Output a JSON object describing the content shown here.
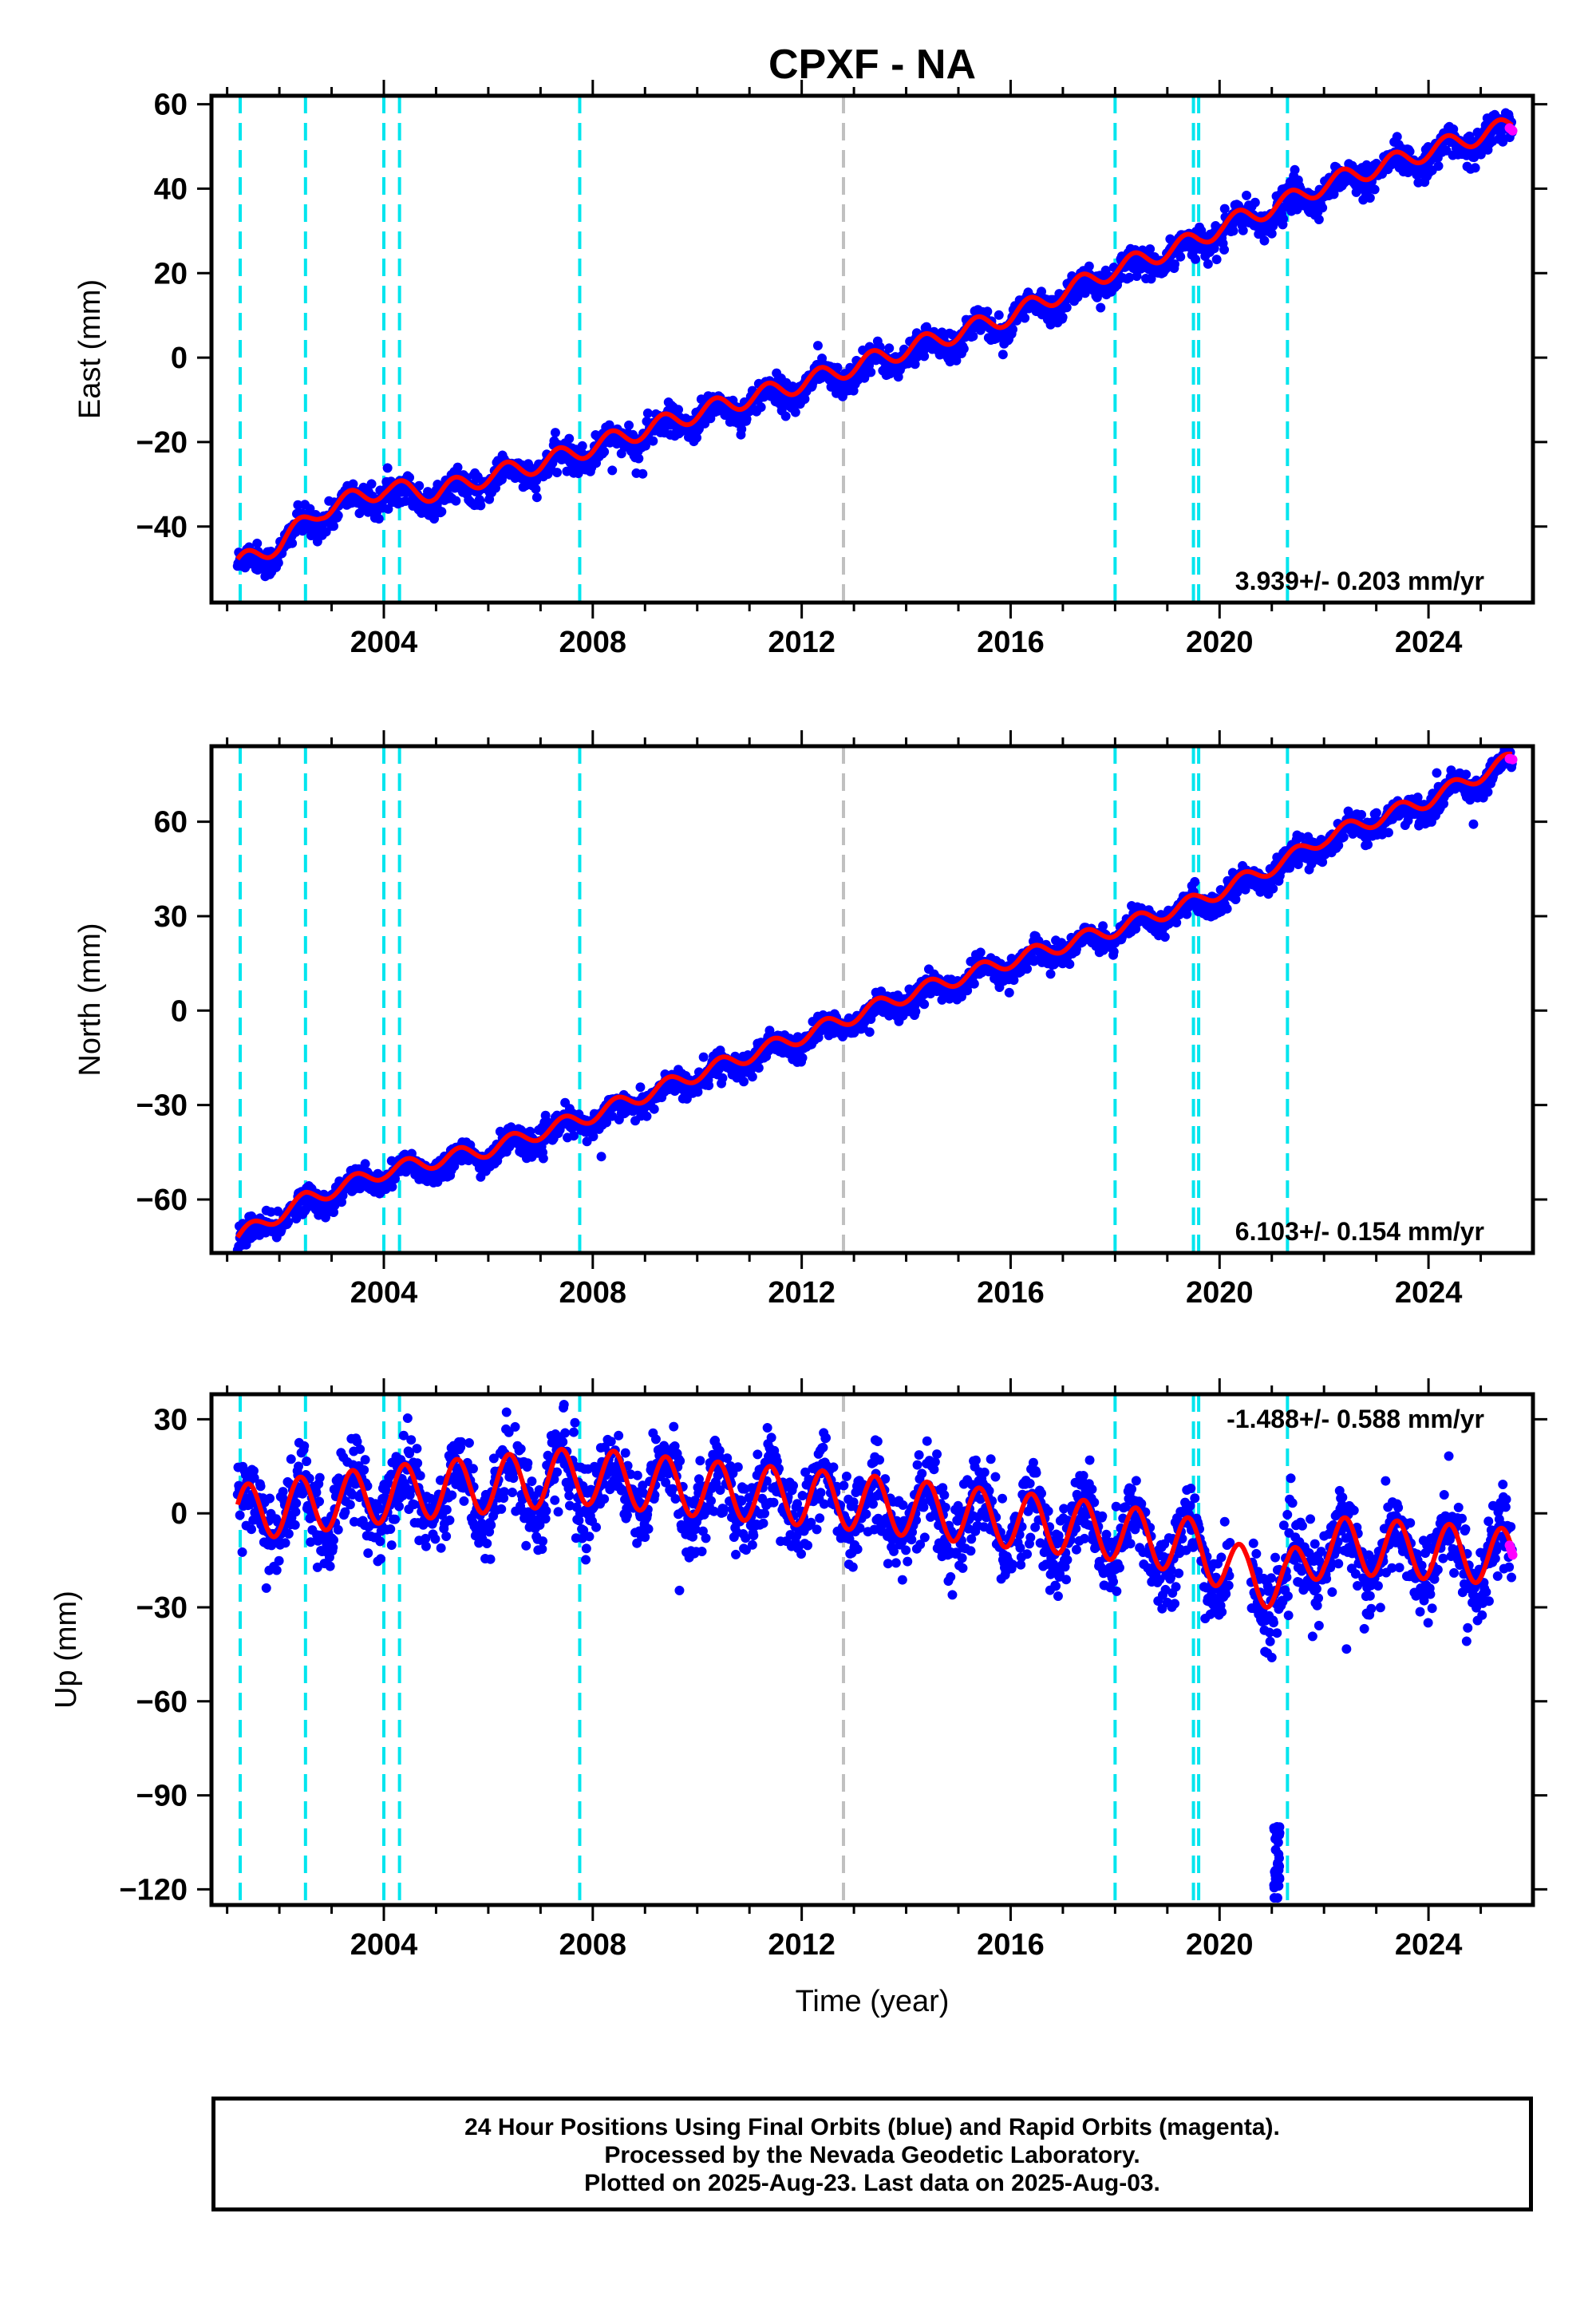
{
  "title": "CPXF - NA",
  "xlabel": "Time (year)",
  "caption": {
    "line1": "24 Hour Positions Using Final Orbits (blue) and Rapid Orbits (magenta).",
    "line2": "Processed by the Nevada Geodetic Laboratory.",
    "line3": "Plotted on 2025-Aug-23. Last data on 2025-Aug-03."
  },
  "colors": {
    "final_orbits": "#0000ff",
    "rapid_orbits": "#ff00ff",
    "model_fit": "#ff0000",
    "equipment_change": "#00e5ee",
    "other_event": "#c0c0c0"
  },
  "chart_data": [
    {
      "type": "scatter",
      "ylabel": "East (mm)",
      "xlim": [
        2000.7,
        2026.0
      ],
      "ylim": [
        -58,
        62
      ],
      "xticks": [
        "2004",
        "2008",
        "2012",
        "2016",
        "2020",
        "2024"
      ],
      "yticks": [
        "60",
        "40",
        "20",
        "0",
        "−20",
        "−40"
      ],
      "rate_label": "3.939+/- 0.203 mm/yr",
      "rate_position": "bottom-right",
      "grid": false,
      "model_fit_samples": {
        "x": [
          2001.2,
          2002.0,
          2002.8,
          2004.0,
          2005.0,
          2006.0,
          2007.0,
          2008.0,
          2010.0,
          2012.0,
          2014.0,
          2016.0,
          2018.0,
          2019.6,
          2020.0,
          2021.3,
          2022.0,
          2024.0,
          2025.6
        ],
        "y": [
          -49,
          -44,
          -36,
          -31,
          -32,
          -28,
          -25,
          -21,
          -13,
          -6,
          2,
          10,
          21,
          28,
          31,
          37,
          41,
          49,
          55
        ]
      },
      "series": [
        {
          "name": "Final Orbits",
          "color": "#0000ff"
        },
        {
          "name": "Rapid Orbits",
          "color": "#ff00ff"
        }
      ],
      "events_cyan": [
        2001.25,
        2002.5,
        2004.0,
        2004.3,
        2007.75,
        2018.0,
        2019.5,
        2019.6,
        2021.3
      ],
      "events_gray": [
        2012.8
      ]
    },
    {
      "type": "scatter",
      "ylabel": "North (mm)",
      "xlim": [
        2000.7,
        2026.0
      ],
      "ylim": [
        -77,
        84
      ],
      "xticks": [
        "2004",
        "2008",
        "2012",
        "2016",
        "2020",
        "2024"
      ],
      "yticks": [
        "60",
        "30",
        "0",
        "−30",
        "−60"
      ],
      "rate_label": "6.103+/- 0.154 mm/yr",
      "rate_position": "bottom-right",
      "grid": false,
      "model_fit_samples": {
        "x": [
          2001.2,
          2002.5,
          2004.0,
          2006.0,
          2008.0,
          2010.0,
          2012.0,
          2014.0,
          2016.0,
          2018.0,
          2019.6,
          2020.0,
          2021.3,
          2022.0,
          2024.0,
          2025.6
        ],
        "y": [
          -72,
          -60,
          -51,
          -44,
          -33,
          -20,
          -8,
          5,
          16,
          26,
          35,
          38,
          48,
          55,
          67,
          80
        ]
      },
      "series": [
        {
          "name": "Final Orbits",
          "color": "#0000ff"
        },
        {
          "name": "Rapid Orbits",
          "color": "#ff00ff"
        }
      ],
      "events_cyan": [
        2001.25,
        2002.5,
        2004.0,
        2004.3,
        2007.75,
        2018.0,
        2019.5,
        2019.6,
        2021.3
      ],
      "events_gray": [
        2012.8
      ]
    },
    {
      "type": "scatter",
      "ylabel": "Up (mm)",
      "xlim": [
        2000.7,
        2026.0
      ],
      "ylim": [
        -125,
        38
      ],
      "xticks": [
        "2004",
        "2008",
        "2012",
        "2016",
        "2020",
        "2024"
      ],
      "yticks": [
        "30",
        "0",
        "−30",
        "−60",
        "−90",
        "−120"
      ],
      "rate_label": "-1.488+/- 0.588 mm/yr",
      "rate_position": "top-right",
      "grid": false,
      "model_fit_samples": {
        "x": [
          2001.2,
          2004.0,
          2007.75,
          2010.0,
          2012.8,
          2016.0,
          2018.0,
          2019.6,
          2020.5,
          2021.3,
          2022.0,
          2024.0,
          2025.6
        ],
        "y": [
          0,
          6,
          12,
          8,
          4,
          -2,
          -6,
          -11,
          -20,
          -22,
          -10,
          -12,
          -14
        ]
      },
      "outliers": {
        "x": 2021.1,
        "y_range": [
          -122,
          -98
        ]
      },
      "series": [
        {
          "name": "Final Orbits",
          "color": "#0000ff"
        },
        {
          "name": "Rapid Orbits",
          "color": "#ff00ff"
        }
      ],
      "events_cyan": [
        2001.25,
        2002.5,
        2004.0,
        2004.3,
        2007.75,
        2018.0,
        2019.5,
        2019.6,
        2021.3
      ],
      "events_gray": [
        2012.8
      ]
    }
  ]
}
